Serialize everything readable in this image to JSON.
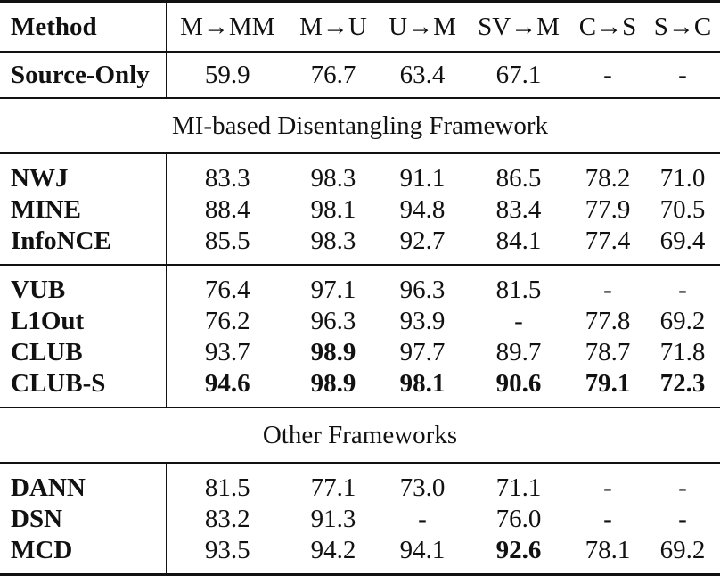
{
  "table": {
    "headers": [
      "Method",
      "M→MM",
      "M→U",
      "U→M",
      "SV→M",
      "C→S",
      "S→C"
    ],
    "source_only": {
      "method": "Source-Only",
      "values": [
        "59.9",
        "76.7",
        "63.4",
        "67.1",
        "-",
        "-"
      ]
    },
    "section_mi": "MI-based Disentangling Framework",
    "group_a": [
      {
        "method": "NWJ",
        "values": [
          "83.3",
          "98.3",
          "91.1",
          "86.5",
          "78.2",
          "71.0"
        ]
      },
      {
        "method": "MINE",
        "values": [
          "88.4",
          "98.1",
          "94.8",
          "83.4",
          "77.9",
          "70.5"
        ]
      },
      {
        "method": "InfoNCE",
        "values": [
          "85.5",
          "98.3",
          "92.7",
          "84.1",
          "77.4",
          "69.4"
        ]
      }
    ],
    "group_b": [
      {
        "method": "VUB",
        "values": [
          "76.4",
          "97.1",
          "96.3",
          "81.5",
          "-",
          "-"
        ]
      },
      {
        "method": "L1Out",
        "values": [
          "76.2",
          "96.3",
          "93.9",
          "-",
          "77.8",
          "69.2"
        ]
      },
      {
        "method": "CLUB",
        "values": [
          "93.7",
          "98.9",
          "97.7",
          "89.7",
          "78.7",
          "71.8"
        ]
      },
      {
        "method": "CLUB-S",
        "values": [
          "94.6",
          "98.9",
          "98.1",
          "90.6",
          "79.1",
          "72.3"
        ]
      }
    ],
    "section_other": "Other Frameworks",
    "group_c": [
      {
        "method": "DANN",
        "values": [
          "81.5",
          "77.1",
          "73.0",
          "71.1",
          "-",
          "-"
        ]
      },
      {
        "method": "DSN",
        "values": [
          "83.2",
          "91.3",
          "-",
          "76.0",
          "-",
          "-"
        ]
      },
      {
        "method": "MCD",
        "values": [
          "93.5",
          "94.2",
          "94.1",
          "92.6",
          "78.1",
          "69.2"
        ]
      }
    ]
  }
}
